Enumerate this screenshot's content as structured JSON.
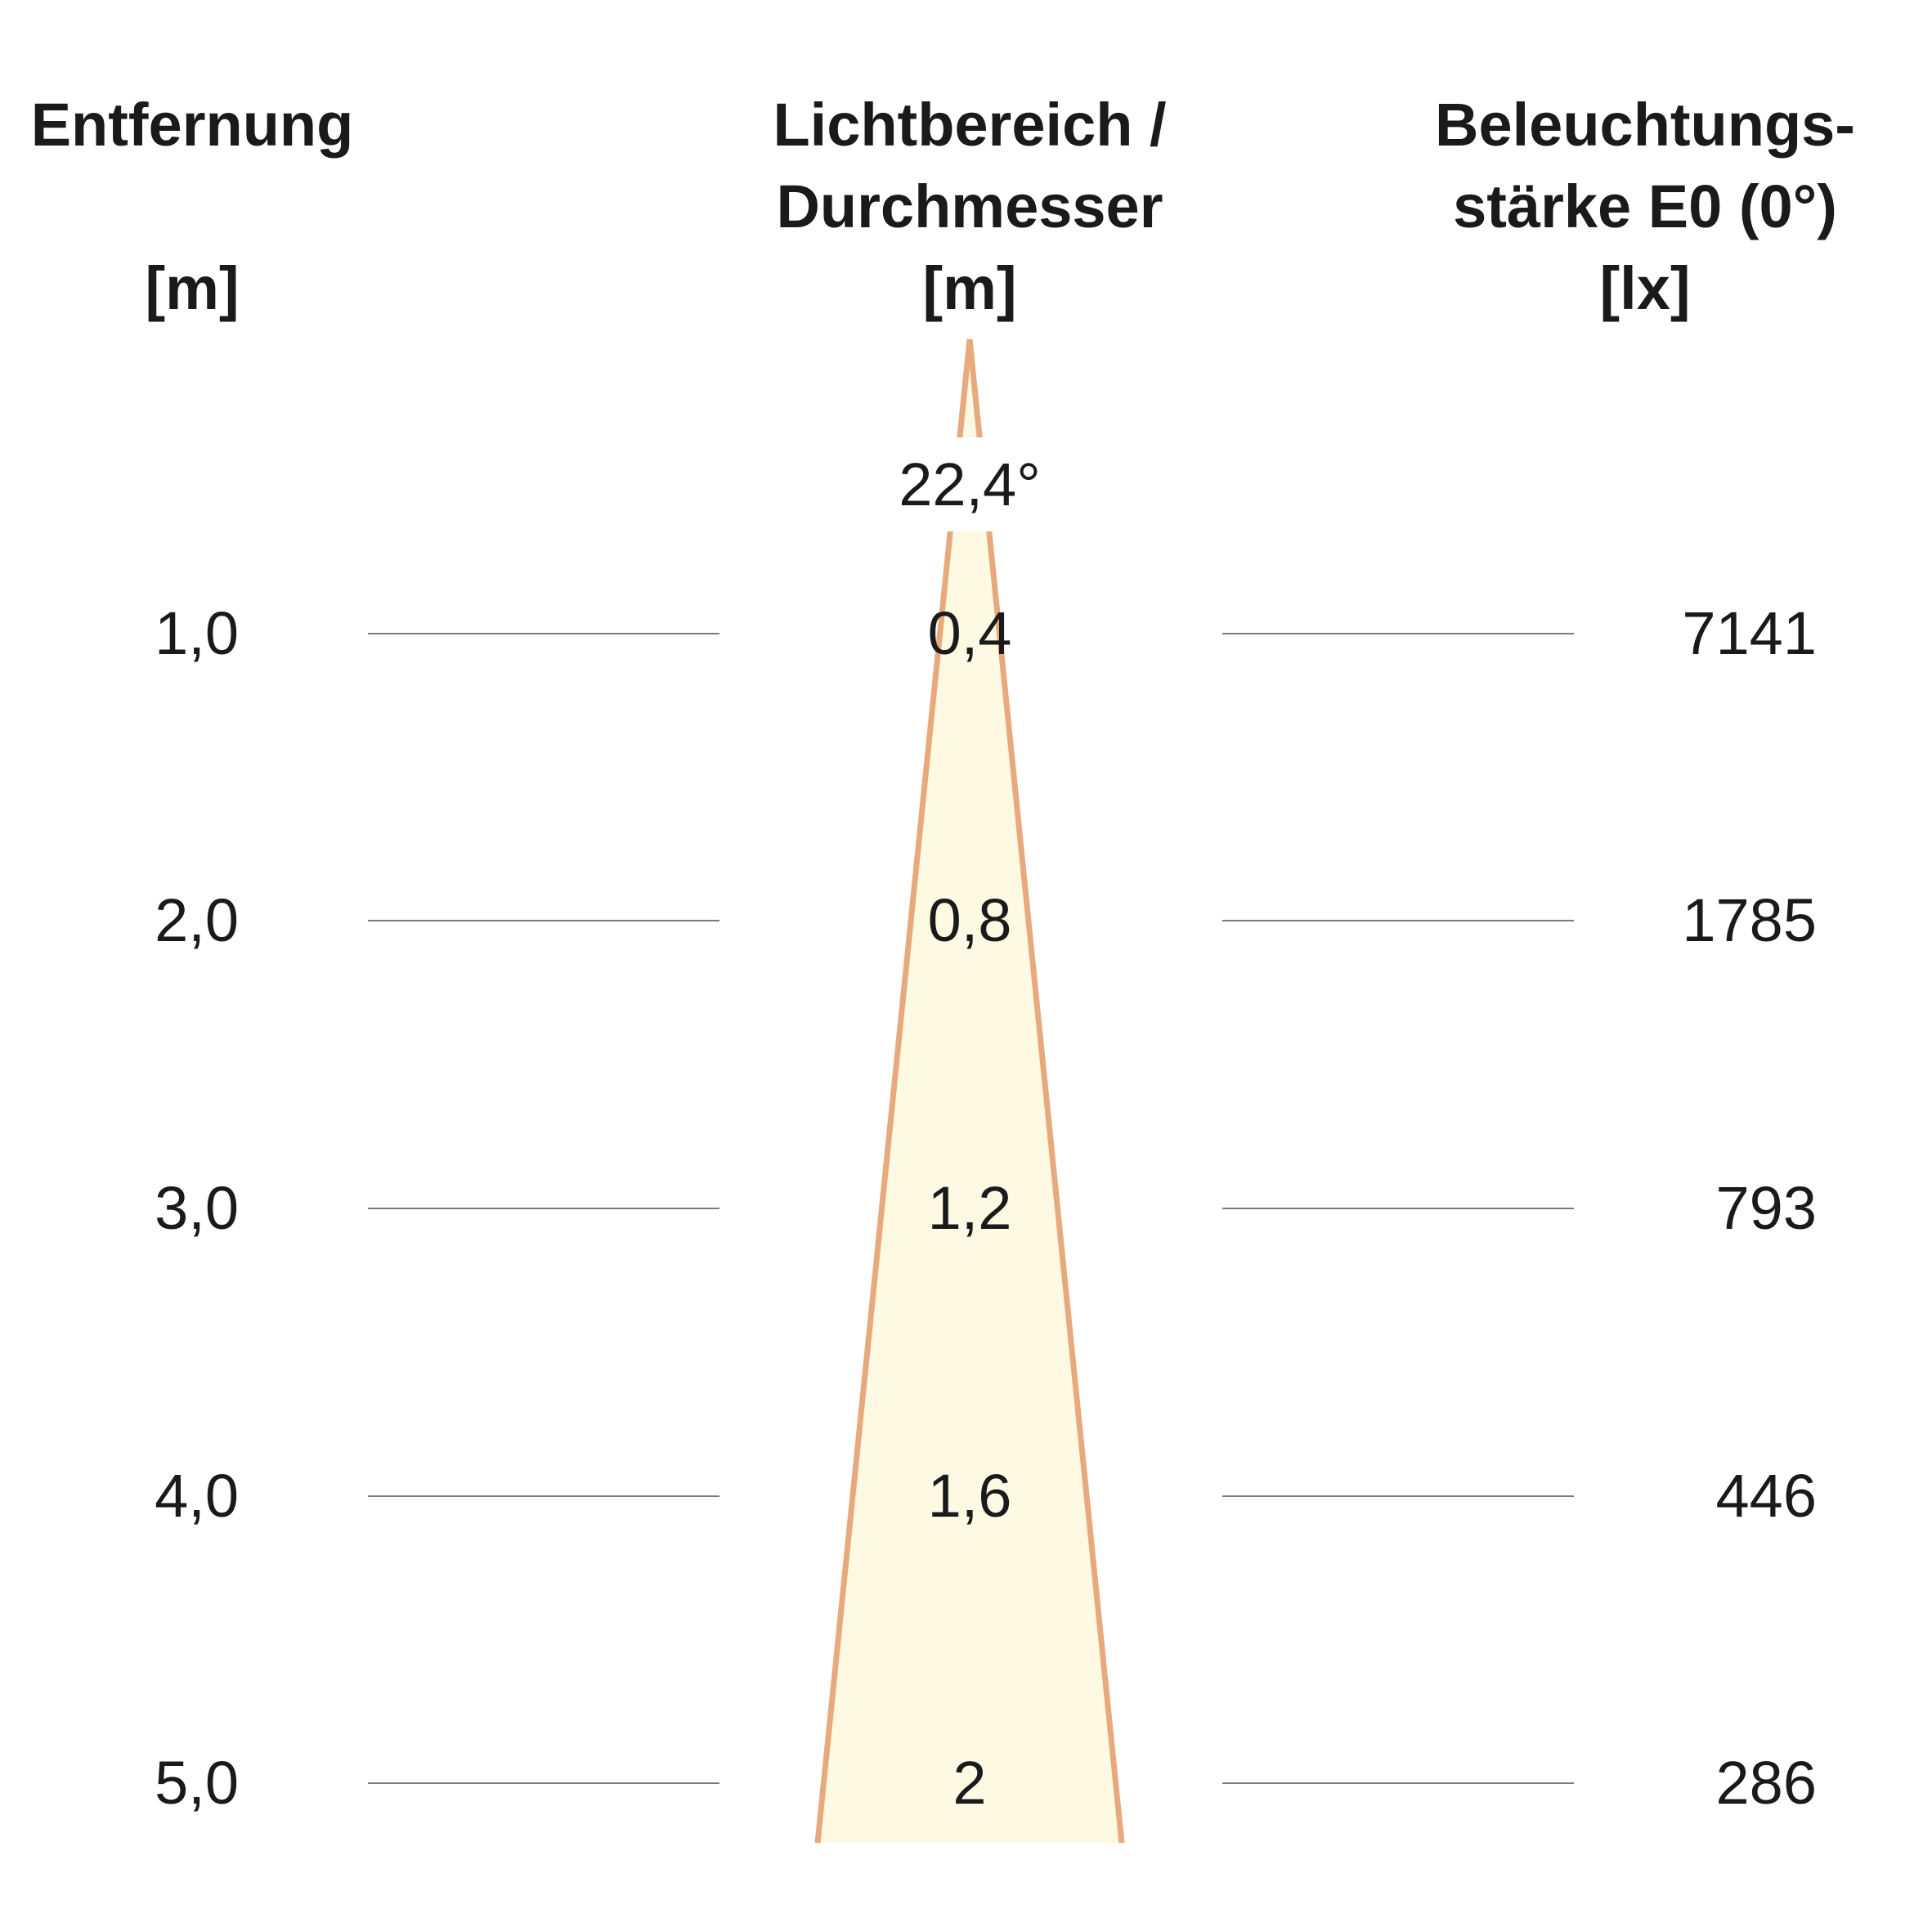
{
  "headers": {
    "distance": {
      "line1": "Entfernung",
      "unit": "[m]"
    },
    "diameter": {
      "line1": "Lichtbereich /",
      "line2": "Durchmesser",
      "unit": "[m]"
    },
    "illuminance": {
      "line1": "Beleuchtungs-",
      "line2": "stärke E0 (0°)",
      "unit": "[lx]"
    }
  },
  "beam_angle": "22,4°",
  "colors": {
    "beam_fill": "#fdf9e3",
    "beam_edge": "#e8a97c",
    "guide_line": "#7a7a7a",
    "text": "#1a1a1a"
  },
  "rows": [
    {
      "distance": "1,0",
      "diameter": "0,4",
      "illuminance": "7141"
    },
    {
      "distance": "2,0",
      "diameter": "0,8",
      "illuminance": "1785"
    },
    {
      "distance": "3,0",
      "diameter": "1,2",
      "illuminance": "793"
    },
    {
      "distance": "4,0",
      "diameter": "1,6",
      "illuminance": "446"
    },
    {
      "distance": "5,0",
      "diameter": "2",
      "illuminance": "286"
    }
  ]
}
